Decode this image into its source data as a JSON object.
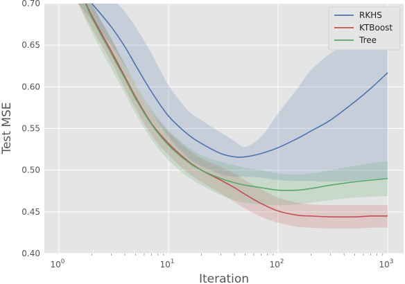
{
  "chart_data": {
    "type": "line",
    "title": "",
    "xlabel": "Iteration",
    "ylabel": "Test MSE",
    "xscale": "log",
    "xlim": [
      1,
      1000
    ],
    "ylim": [
      0.4,
      0.7
    ],
    "grid": true,
    "legend_position": "top-right",
    "x_tick_labels": [
      {
        "value": 1,
        "base": "10",
        "exp": "0"
      },
      {
        "value": 10,
        "base": "10",
        "exp": "1"
      },
      {
        "value": 100,
        "base": "10",
        "exp": "2"
      },
      {
        "value": 1000,
        "base": "10",
        "exp": "3"
      }
    ],
    "y_ticks": [
      {
        "value": 0.4,
        "label": "0.40"
      },
      {
        "value": 0.45,
        "label": "0.45"
      },
      {
        "value": 0.5,
        "label": "0.50"
      },
      {
        "value": 0.55,
        "label": "0.55"
      },
      {
        "value": 0.6,
        "label": "0.60"
      },
      {
        "value": 0.65,
        "label": "0.65"
      },
      {
        "value": 0.7,
        "label": "0.70"
      }
    ],
    "series": [
      {
        "name": "RKHS",
        "color": "#4c72b0",
        "x": [
          1.5,
          2,
          3,
          4,
          5,
          7,
          10,
          15,
          20,
          30,
          40,
          50,
          70,
          100,
          150,
          200,
          300,
          500,
          700,
          1000
        ],
        "y": [
          0.72,
          0.7,
          0.672,
          0.648,
          0.626,
          0.594,
          0.565,
          0.543,
          0.532,
          0.52,
          0.516,
          0.516,
          0.52,
          0.527,
          0.538,
          0.547,
          0.56,
          0.582,
          0.598,
          0.617
        ],
        "lower": [
          0.7,
          0.68,
          0.65,
          0.625,
          0.603,
          0.57,
          0.54,
          0.515,
          0.505,
          0.495,
          0.492,
          0.492,
          0.491,
          0.488,
          0.487,
          0.487,
          0.486,
          0.487,
          0.489,
          0.491
        ],
        "upper": [
          0.74,
          0.73,
          0.708,
          0.69,
          0.672,
          0.64,
          0.602,
          0.572,
          0.56,
          0.545,
          0.535,
          0.528,
          0.54,
          0.568,
          0.598,
          0.62,
          0.64,
          0.655,
          0.66,
          0.665
        ]
      },
      {
        "name": "KTBoost",
        "color": "#c44e52",
        "x": [
          1.5,
          2,
          3,
          4,
          5,
          7,
          10,
          15,
          20,
          30,
          40,
          50,
          70,
          100,
          150,
          200,
          300,
          500,
          700,
          1000
        ],
        "y": [
          0.72,
          0.685,
          0.643,
          0.612,
          0.588,
          0.556,
          0.532,
          0.511,
          0.5,
          0.488,
          0.479,
          0.471,
          0.46,
          0.451,
          0.446,
          0.445,
          0.444,
          0.444,
          0.445,
          0.445
        ],
        "lower": [
          0.7,
          0.67,
          0.63,
          0.598,
          0.574,
          0.542,
          0.518,
          0.497,
          0.486,
          0.472,
          0.462,
          0.454,
          0.444,
          0.437,
          0.432,
          0.431,
          0.43,
          0.43,
          0.431,
          0.431
        ],
        "upper": [
          0.74,
          0.7,
          0.658,
          0.626,
          0.602,
          0.57,
          0.546,
          0.525,
          0.514,
          0.504,
          0.496,
          0.488,
          0.477,
          0.467,
          0.461,
          0.459,
          0.458,
          0.458,
          0.458,
          0.458
        ]
      },
      {
        "name": "Tree",
        "color": "#55a868",
        "x": [
          1.5,
          2,
          3,
          4,
          5,
          7,
          10,
          15,
          20,
          30,
          40,
          50,
          70,
          100,
          150,
          200,
          300,
          500,
          700,
          1000
        ],
        "y": [
          0.72,
          0.683,
          0.64,
          0.61,
          0.586,
          0.555,
          0.53,
          0.51,
          0.5,
          0.49,
          0.485,
          0.482,
          0.479,
          0.476,
          0.476,
          0.478,
          0.482,
          0.486,
          0.488,
          0.49
        ],
        "lower": [
          0.7,
          0.665,
          0.622,
          0.592,
          0.568,
          0.537,
          0.512,
          0.492,
          0.482,
          0.47,
          0.464,
          0.461,
          0.459,
          0.458,
          0.459,
          0.461,
          0.464,
          0.467,
          0.468,
          0.469
        ],
        "upper": [
          0.74,
          0.7,
          0.658,
          0.628,
          0.604,
          0.573,
          0.548,
          0.528,
          0.518,
          0.51,
          0.506,
          0.503,
          0.5,
          0.496,
          0.495,
          0.496,
          0.5,
          0.505,
          0.508,
          0.511
        ]
      }
    ]
  }
}
